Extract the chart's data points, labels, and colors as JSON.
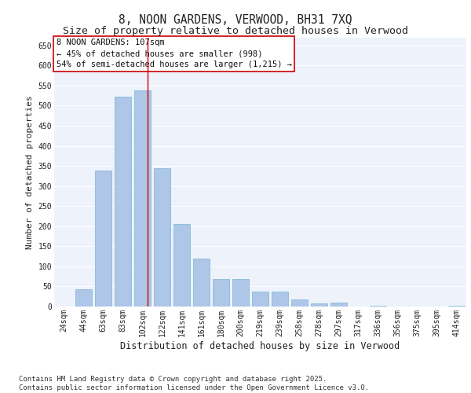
{
  "title": "8, NOON GARDENS, VERWOOD, BH31 7XQ",
  "subtitle": "Size of property relative to detached houses in Verwood",
  "xlabel": "Distribution of detached houses by size in Verwood",
  "ylabel": "Number of detached properties",
  "categories": [
    "24sqm",
    "44sqm",
    "63sqm",
    "83sqm",
    "102sqm",
    "122sqm",
    "141sqm",
    "161sqm",
    "180sqm",
    "200sqm",
    "219sqm",
    "239sqm",
    "258sqm",
    "278sqm",
    "297sqm",
    "317sqm",
    "336sqm",
    "356sqm",
    "375sqm",
    "395sqm",
    "414sqm"
  ],
  "values": [
    0,
    43,
    338,
    522,
    538,
    345,
    206,
    120,
    68,
    68,
    38,
    38,
    18,
    7,
    10,
    0,
    2,
    0,
    0,
    0,
    2
  ],
  "bar_color": "#aec6e8",
  "bar_edgecolor": "#7ab3d4",
  "background_color": "#eef2fb",
  "grid_color": "#ffffff",
  "annotation_box_text": "8 NOON GARDENS: 107sqm\n← 45% of detached houses are smaller (998)\n54% of semi-detached houses are larger (1,215) →",
  "vline_color": "#cc0000",
  "vline_x": 4.27,
  "ylim": [
    0,
    670
  ],
  "yticks": [
    0,
    50,
    100,
    150,
    200,
    250,
    300,
    350,
    400,
    450,
    500,
    550,
    600,
    650
  ],
  "footnote": "Contains HM Land Registry data © Crown copyright and database right 2025.\nContains public sector information licensed under the Open Government Licence v3.0.",
  "title_fontsize": 10.5,
  "subtitle_fontsize": 9.5,
  "xlabel_fontsize": 8.5,
  "ylabel_fontsize": 8,
  "tick_fontsize": 7,
  "annotation_fontsize": 7.5,
  "footnote_fontsize": 6.5
}
